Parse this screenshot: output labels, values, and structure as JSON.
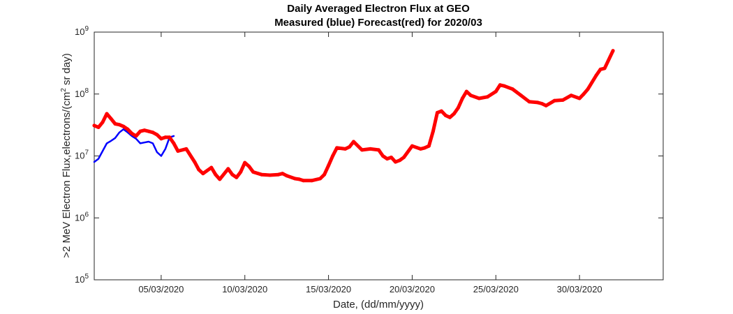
{
  "chart_data": {
    "type": "line",
    "title": "Daily Averaged Electron Flux at GEO",
    "subtitle": "Measured (blue) Forecast(red) for 2020/03",
    "xlabel": "Date, (dd/mm/yyyy)",
    "ylabel": ">2 MeV Electron Flux,electrons/(cm² sr day)",
    "ylabel_parts": {
      "before": ">2 MeV Electron Flux,electrons/(cm",
      "sup": "2",
      "after": " sr day)"
    },
    "yscale": "log",
    "ylim": [
      100000,
      1000000000
    ],
    "xlim": [
      "2020-03-01",
      "2020-04-04"
    ],
    "grid": false,
    "x_ticks": [
      "05/03/2020",
      "10/03/2020",
      "15/03/2020",
      "20/03/2020",
      "25/03/2020",
      "30/03/2020"
    ],
    "y_ticks": [
      {
        "base": "10",
        "exp": "5"
      },
      {
        "base": "10",
        "exp": "6"
      },
      {
        "base": "10",
        "exp": "7"
      },
      {
        "base": "10",
        "exp": "8"
      },
      {
        "base": "10",
        "exp": "9"
      }
    ],
    "series": [
      {
        "color": "#0000ff",
        "x": [
          "2020-03-01T00:00",
          "2020-03-01T06:00",
          "2020-03-01T12:00",
          "2020-03-01T18:00",
          "2020-03-02T00:00",
          "2020-03-02T06:00",
          "2020-03-02T12:00",
          "2020-03-02T18:00",
          "2020-03-03T00:00",
          "2020-03-03T06:00",
          "2020-03-03T12:00",
          "2020-03-03T18:00",
          "2020-03-04T00:00",
          "2020-03-04T06:00",
          "2020-03-04T12:00",
          "2020-03-04T18:00",
          "2020-03-05T00:00",
          "2020-03-05T06:00",
          "2020-03-05T12:00",
          "2020-03-05T18:00"
        ],
        "values": [
          8000000,
          9000000,
          12000000,
          16000000,
          17500000,
          19500000,
          24000000,
          27000000,
          24000000,
          21000000,
          19000000,
          16000000,
          16500000,
          17000000,
          16000000,
          11500000,
          10000000,
          13000000,
          20000000,
          21000000
        ]
      },
      {
        "color": "#ff0000",
        "x": [
          "2020-03-01T00:00",
          "2020-03-01T06:00",
          "2020-03-01T12:00",
          "2020-03-01T18:00",
          "2020-03-02T00:00",
          "2020-03-02T06:00",
          "2020-03-02T12:00",
          "2020-03-02T18:00",
          "2020-03-03T00:00",
          "2020-03-03T06:00",
          "2020-03-03T12:00",
          "2020-03-03T18:00",
          "2020-03-04T00:00",
          "2020-03-04T06:00",
          "2020-03-04T12:00",
          "2020-03-04T18:00",
          "2020-03-05T00:00",
          "2020-03-05T06:00",
          "2020-03-05T12:00",
          "2020-03-05T18:00",
          "2020-03-06T00:00",
          "2020-03-06T12:00",
          "2020-03-07T00:00",
          "2020-03-07T06:00",
          "2020-03-07T12:00",
          "2020-03-08T00:00",
          "2020-03-08T06:00",
          "2020-03-08T12:00",
          "2020-03-09T00:00",
          "2020-03-09T06:00",
          "2020-03-09T12:00",
          "2020-03-09T18:00",
          "2020-03-10T00:00",
          "2020-03-10T06:00",
          "2020-03-10T12:00",
          "2020-03-11T00:00",
          "2020-03-11T12:00",
          "2020-03-12T00:00",
          "2020-03-12T06:00",
          "2020-03-12T12:00",
          "2020-03-13T00:00",
          "2020-03-13T06:00",
          "2020-03-13T12:00",
          "2020-03-14T00:00",
          "2020-03-14T12:00",
          "2020-03-14T18:00",
          "2020-03-15T00:00",
          "2020-03-15T06:00",
          "2020-03-15T12:00",
          "2020-03-16T00:00",
          "2020-03-16T06:00",
          "2020-03-16T12:00",
          "2020-03-17T00:00",
          "2020-03-17T12:00",
          "2020-03-18T00:00",
          "2020-03-18T06:00",
          "2020-03-18T12:00",
          "2020-03-18T18:00",
          "2020-03-19T00:00",
          "2020-03-19T06:00",
          "2020-03-19T12:00",
          "2020-03-20T00:00",
          "2020-03-20T12:00",
          "2020-03-20T18:00",
          "2020-03-21T00:00",
          "2020-03-21T06:00",
          "2020-03-21T12:00",
          "2020-03-21T18:00",
          "2020-03-22T00:00",
          "2020-03-22T06:00",
          "2020-03-22T12:00",
          "2020-03-22T18:00",
          "2020-03-23T00:00",
          "2020-03-23T06:00",
          "2020-03-23T12:00",
          "2020-03-24T00:00",
          "2020-03-24T12:00",
          "2020-03-25T00:00",
          "2020-03-25T06:00",
          "2020-03-25T12:00",
          "2020-03-26T00:00",
          "2020-03-26T12:00",
          "2020-03-27T00:00",
          "2020-03-27T12:00",
          "2020-03-27T18:00",
          "2020-03-28T00:00",
          "2020-03-28T12:00",
          "2020-03-29T00:00",
          "2020-03-29T12:00",
          "2020-03-30T00:00",
          "2020-03-30T06:00",
          "2020-03-30T12:00",
          "2020-03-31T00:00",
          "2020-03-31T06:00",
          "2020-03-31T12:00",
          "2020-04-01T00:00"
        ],
        "values": [
          31000000,
          29000000,
          35000000,
          48000000,
          40000000,
          33000000,
          32000000,
          30000000,
          27000000,
          23000000,
          21000000,
          25000000,
          26000000,
          25000000,
          24000000,
          22000000,
          19000000,
          20000000,
          20000000,
          16000000,
          12000000,
          13000000,
          8000000,
          6000000,
          5200000,
          6500000,
          5000000,
          4200000,
          6200000,
          5000000,
          4500000,
          5500000,
          7800000,
          6800000,
          5500000,
          5000000,
          4900000,
          5000000,
          5200000,
          4800000,
          4300000,
          4200000,
          4000000,
          4000000,
          4300000,
          5000000,
          7000000,
          10000000,
          13500000,
          13000000,
          14000000,
          17000000,
          12500000,
          13000000,
          12500000,
          10000000,
          9000000,
          9500000,
          8000000,
          8500000,
          9500000,
          14500000,
          13000000,
          13500000,
          14500000,
          25000000,
          50000000,
          53000000,
          45000000,
          42000000,
          48000000,
          60000000,
          85000000,
          110000000,
          95000000,
          85000000,
          90000000,
          110000000,
          140000000,
          135000000,
          120000000,
          95000000,
          75000000,
          73000000,
          70000000,
          65000000,
          78000000,
          80000000,
          95000000,
          85000000,
          100000000,
          120000000,
          200000000,
          250000000,
          260000000,
          500000000
        ]
      }
    ]
  }
}
